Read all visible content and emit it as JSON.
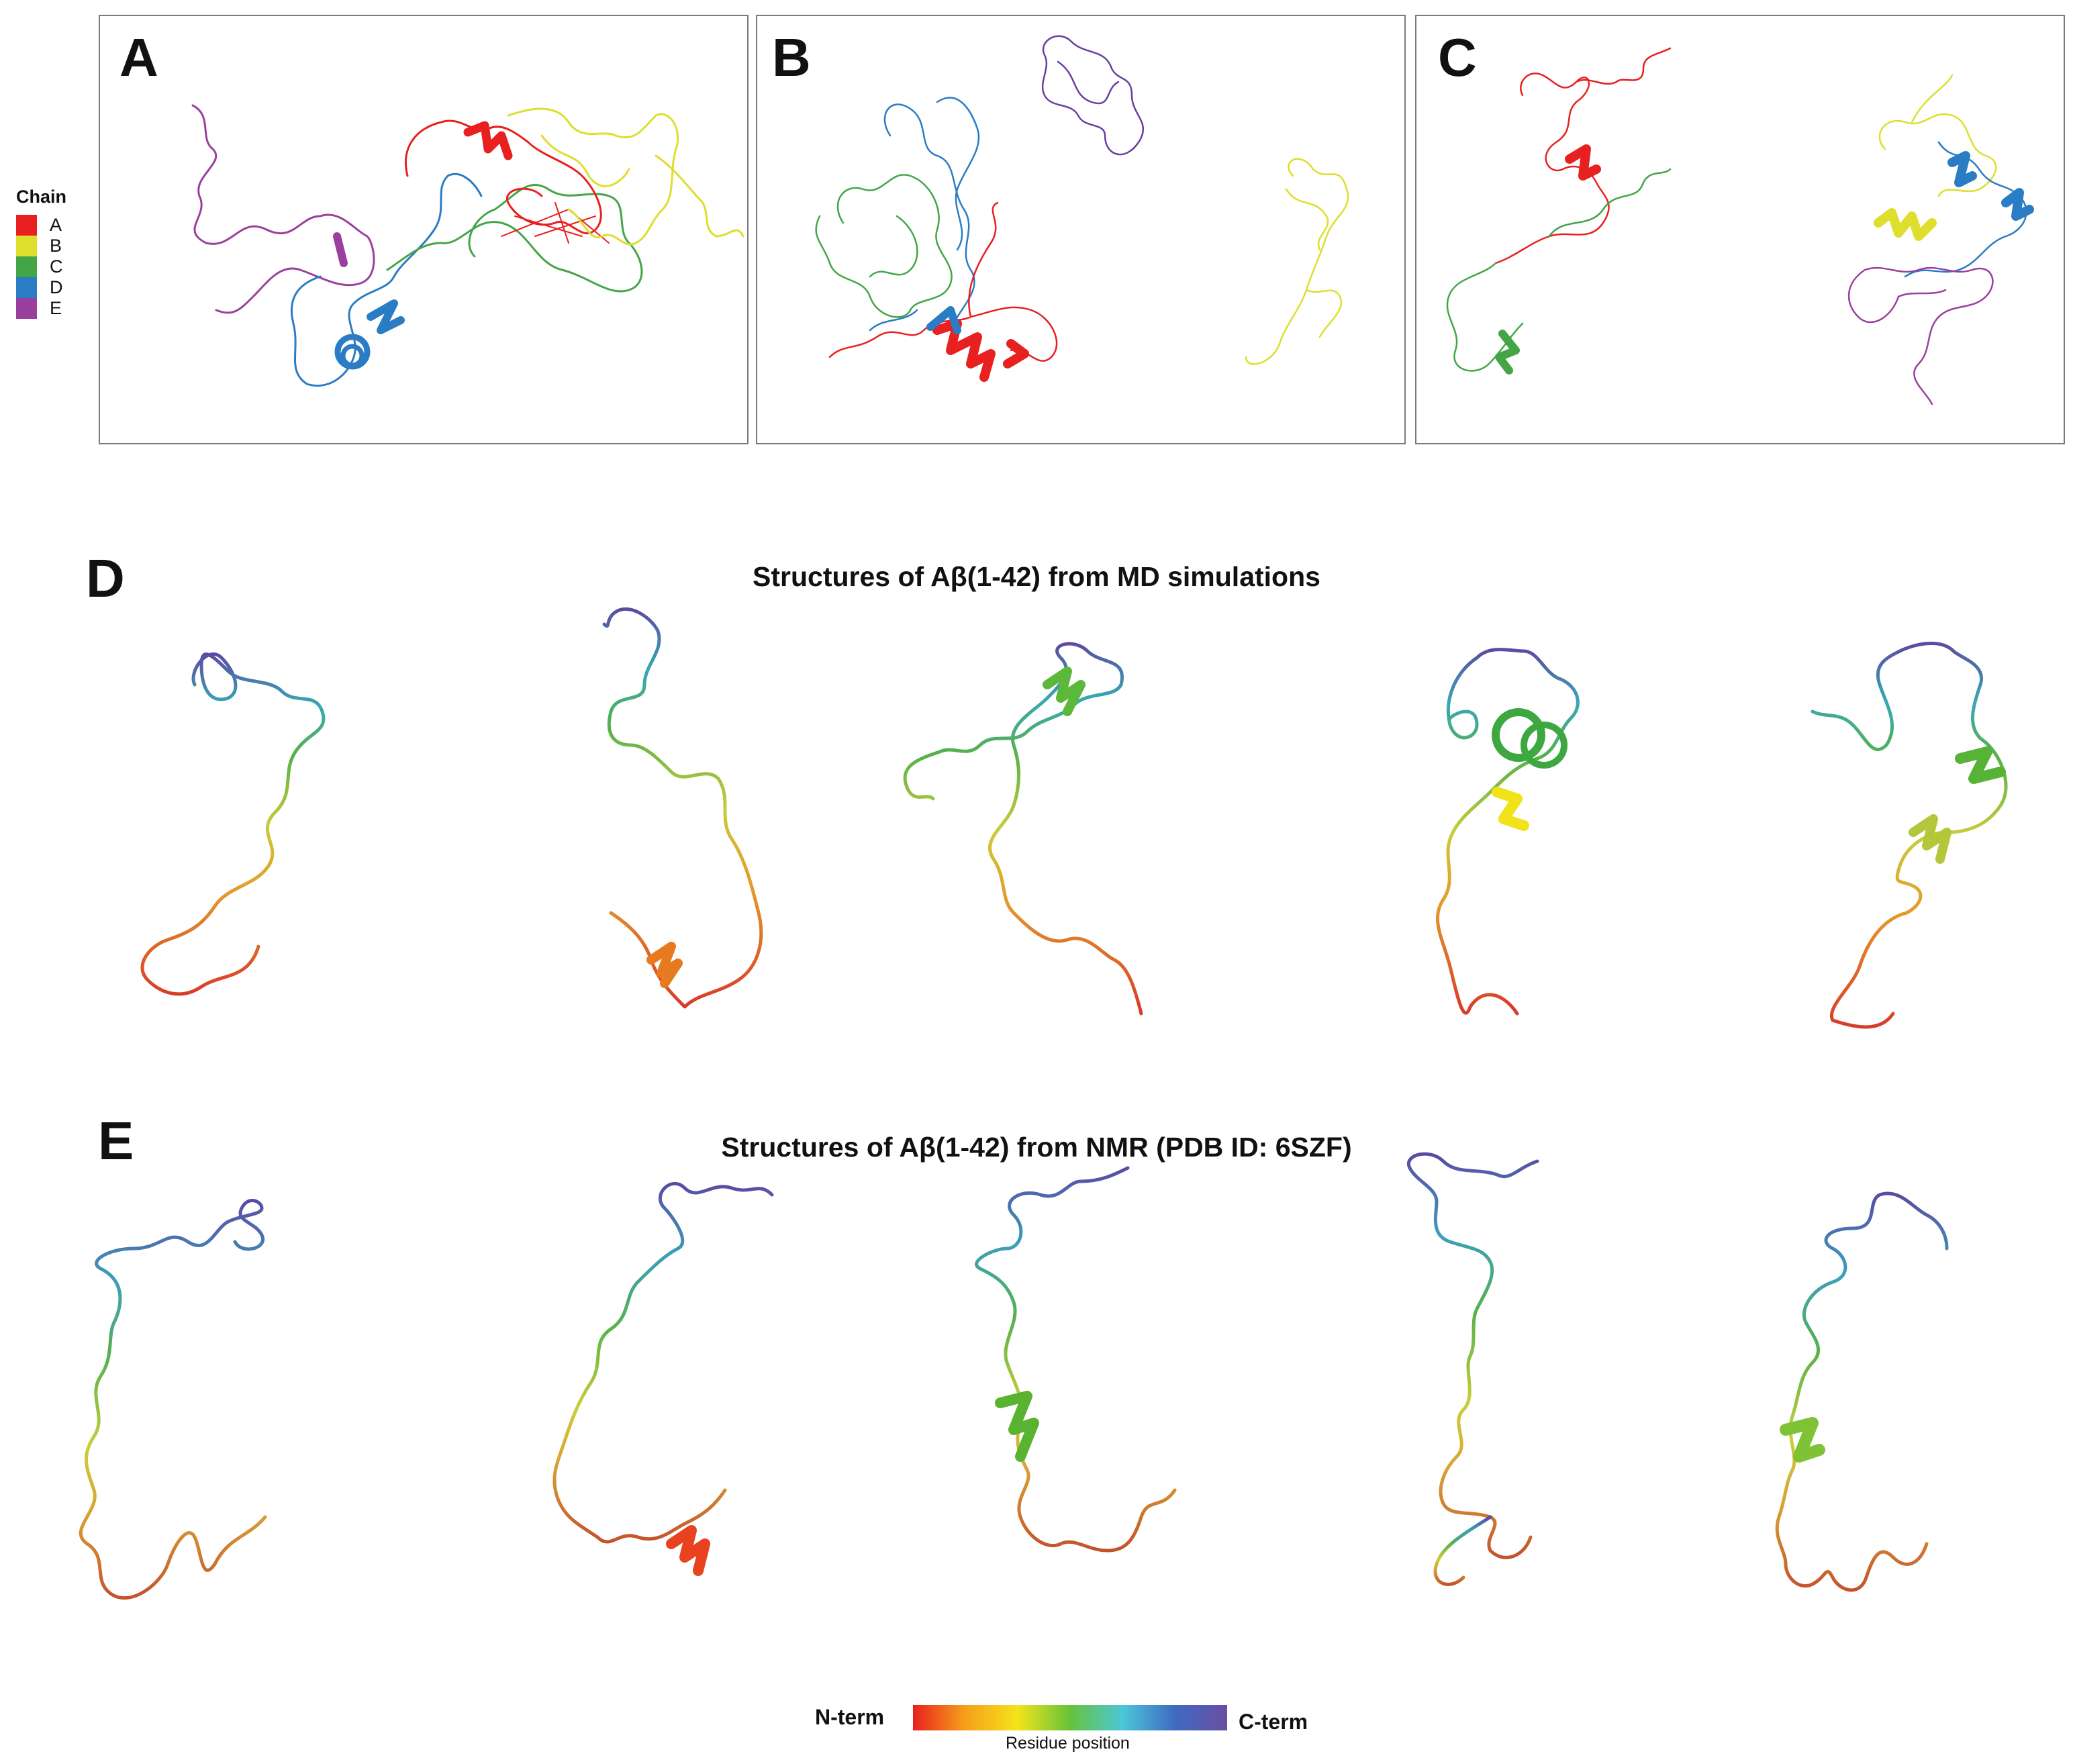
{
  "panels": {
    "a": "A",
    "b": "B",
    "c": "C",
    "d": "D",
    "e": "E"
  },
  "legend": {
    "title": "Chain",
    "items": [
      {
        "label": "A",
        "color": "#e8201f"
      },
      {
        "label": "B",
        "color": "#dede2c"
      },
      {
        "label": "C",
        "color": "#44a547"
      },
      {
        "label": "D",
        "color": "#2a7cc4"
      },
      {
        "label": "E",
        "color": "#9b3f9e"
      }
    ]
  },
  "section_d": {
    "title": "Structures of Aβ(1-42) from MD simulations"
  },
  "section_e": {
    "title": "Structures of Aβ(1-42) from NMR (PDB ID: 6SZF)"
  },
  "colorbar": {
    "left_label": "N-term",
    "right_label": "C-term",
    "caption": "Residue position",
    "colors": [
      "#e8201f",
      "#f6a01a",
      "#f3e41a",
      "#66c33a",
      "#4bc7d8",
      "#3e6bc1",
      "#6a4ea3"
    ]
  }
}
